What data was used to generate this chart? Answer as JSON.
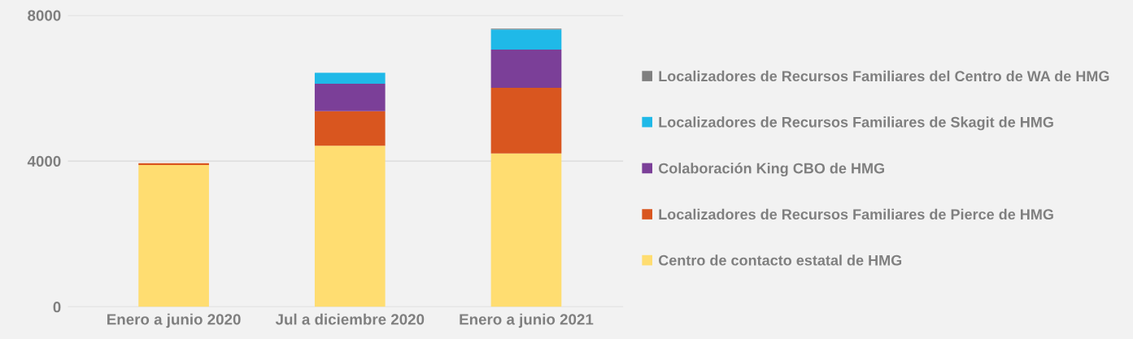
{
  "chart_data": {
    "type": "bar",
    "stacked": true,
    "categories": [
      "Enero a junio 2020",
      "Jul a diciembre 2020",
      "Enero a junio 2021"
    ],
    "series": [
      {
        "name": "Centro de contacto estatal de HMG",
        "color": "#ffdd71",
        "values": [
          3890,
          4420,
          4210
        ]
      },
      {
        "name": "Localizadores de Recursos Familiares de Pierce de HMG",
        "color": "#d9561f",
        "values": [
          50,
          950,
          1800
        ]
      },
      {
        "name": "Colaboración King CBO de HMG",
        "color": "#7b3f98",
        "values": [
          0,
          750,
          1050
        ]
      },
      {
        "name": "Localizadores de Recursos Familiares de Skagit de HMG",
        "color": "#1fb9e8",
        "values": [
          0,
          300,
          550
        ]
      },
      {
        "name": "Localizadores de Recursos Familiares del Centro de WA de HMG",
        "color": "#7f7f7f",
        "values": [
          0,
          0,
          20
        ]
      }
    ],
    "ylim": [
      0,
      8000
    ],
    "yticks": [
      0,
      4000,
      8000
    ],
    "grid": "y",
    "legend": "right"
  }
}
